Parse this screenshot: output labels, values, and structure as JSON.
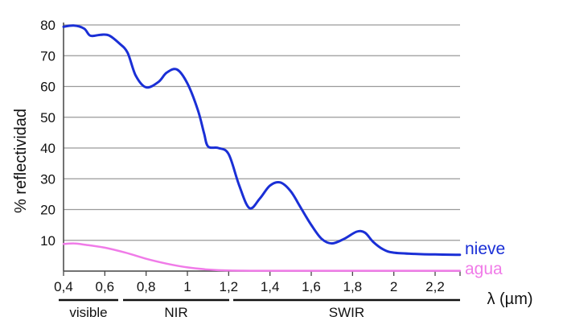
{
  "chart_data": {
    "type": "line",
    "xlabel": "λ (µm)",
    "ylabel": "% reflectividad",
    "xlim": [
      0.4,
      2.35
    ],
    "ylim": [
      0,
      82
    ],
    "x_ticks": [
      0.4,
      0.6,
      0.8,
      1.0,
      1.2,
      1.4,
      1.6,
      1.8,
      2.0,
      2.2
    ],
    "x_tick_labels": [
      "0,4",
      "0,6",
      "0,8",
      "1",
      "1,2",
      "1,4",
      "1,6",
      "1,8",
      "2",
      "2,2"
    ],
    "y_ticks": [
      10,
      20,
      30,
      40,
      50,
      60,
      70,
      80
    ],
    "y_tick_labels": [
      "10",
      "20",
      "30",
      "40",
      "50",
      "60",
      "70",
      "80"
    ],
    "grid": true,
    "legend_placement": "right, at line ends",
    "bands": [
      {
        "label": "visible",
        "from": 0.4,
        "to": 0.69
      },
      {
        "label": "NIR",
        "from": 0.72,
        "to": 1.22
      },
      {
        "label": "SWIR",
        "from": 1.25,
        "to": 2.35
      }
    ],
    "series": [
      {
        "name": "nieve",
        "color": "#1a2fd6",
        "points": [
          [
            0.4,
            79.4
          ],
          [
            0.45,
            79.8
          ],
          [
            0.5,
            78.8
          ],
          [
            0.53,
            76.5
          ],
          [
            0.58,
            76.8
          ],
          [
            0.62,
            76.6
          ],
          [
            0.67,
            74.0
          ],
          [
            0.71,
            71.0
          ],
          [
            0.75,
            63.5
          ],
          [
            0.8,
            59.7
          ],
          [
            0.86,
            61.5
          ],
          [
            0.9,
            64.5
          ],
          [
            0.95,
            65.5
          ],
          [
            1.0,
            61.0
          ],
          [
            1.05,
            52.5
          ],
          [
            1.08,
            45.0
          ],
          [
            1.1,
            40.5
          ],
          [
            1.15,
            40.0
          ],
          [
            1.2,
            38.0
          ],
          [
            1.25,
            28.0
          ],
          [
            1.3,
            20.5
          ],
          [
            1.35,
            23.5
          ],
          [
            1.4,
            27.8
          ],
          [
            1.45,
            28.8
          ],
          [
            1.5,
            26.0
          ],
          [
            1.55,
            20.5
          ],
          [
            1.6,
            15.0
          ],
          [
            1.65,
            10.5
          ],
          [
            1.7,
            9.0
          ],
          [
            1.76,
            10.5
          ],
          [
            1.82,
            12.8
          ],
          [
            1.86,
            12.5
          ],
          [
            1.9,
            9.5
          ],
          [
            1.95,
            7.0
          ],
          [
            2.0,
            6.0
          ],
          [
            2.1,
            5.6
          ],
          [
            2.2,
            5.4
          ],
          [
            2.3,
            5.3
          ],
          [
            2.35,
            5.3
          ]
        ]
      },
      {
        "name": "agua",
        "color": "#f07be8",
        "points": [
          [
            0.4,
            8.8
          ],
          [
            0.45,
            9.0
          ],
          [
            0.5,
            8.6
          ],
          [
            0.6,
            7.6
          ],
          [
            0.7,
            6.0
          ],
          [
            0.8,
            4.0
          ],
          [
            0.9,
            2.4
          ],
          [
            1.0,
            1.2
          ],
          [
            1.1,
            0.5
          ],
          [
            1.2,
            0.2
          ],
          [
            1.4,
            0.1
          ],
          [
            1.8,
            0.1
          ],
          [
            2.35,
            0.1
          ]
        ]
      }
    ]
  }
}
